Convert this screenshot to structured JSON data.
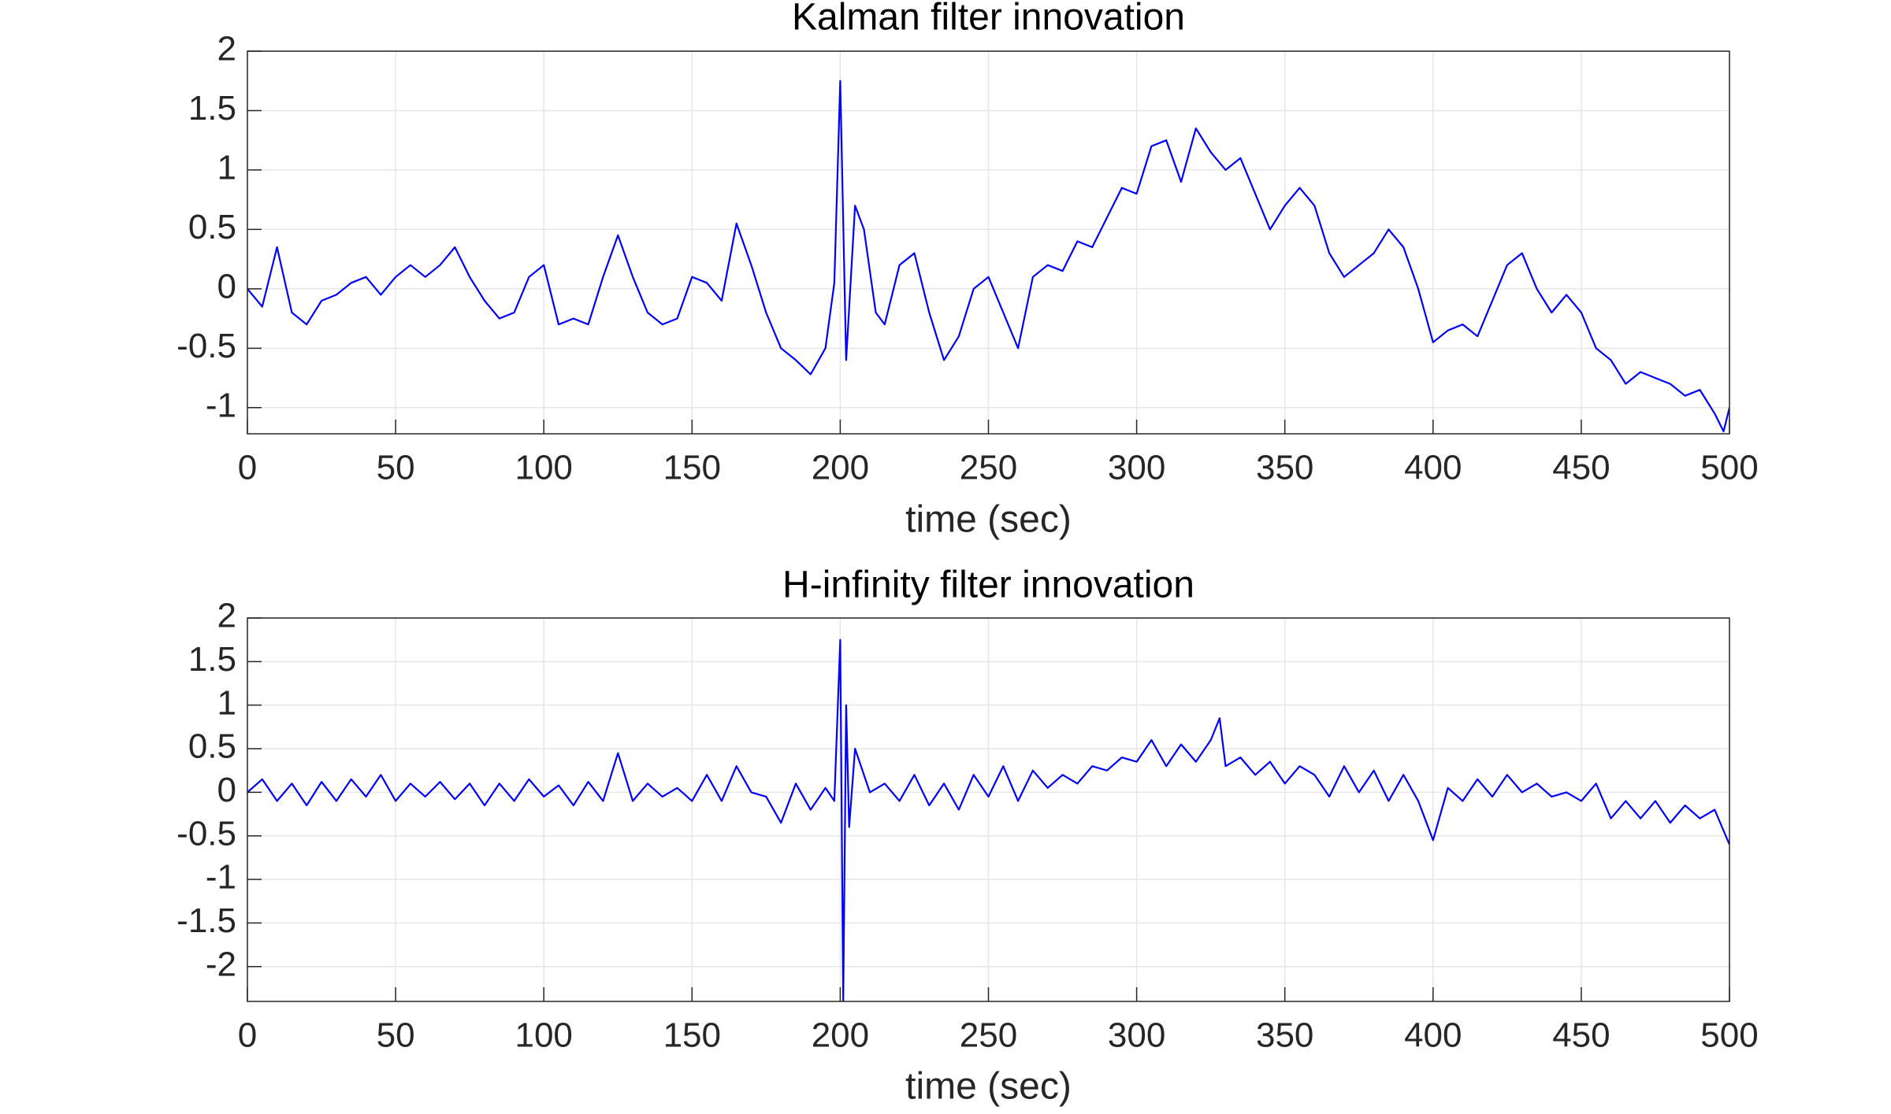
{
  "chart_data": [
    {
      "type": "line",
      "title": "Kalman filter innovation",
      "xlabel": "time (sec)",
      "color": "#0000ff",
      "x": [
        0,
        5,
        10,
        15,
        20,
        25,
        30,
        35,
        40,
        45,
        50,
        55,
        60,
        65,
        70,
        75,
        80,
        85,
        90,
        95,
        100,
        105,
        110,
        115,
        120,
        125,
        130,
        135,
        140,
        145,
        150,
        155,
        160,
        165,
        170,
        175,
        180,
        185,
        190,
        195,
        198,
        200,
        202,
        205,
        208,
        212,
        215,
        220,
        225,
        230,
        235,
        240,
        245,
        250,
        255,
        260,
        265,
        270,
        275,
        280,
        285,
        290,
        295,
        300,
        305,
        310,
        315,
        320,
        325,
        330,
        335,
        340,
        345,
        350,
        355,
        360,
        365,
        370,
        375,
        380,
        385,
        390,
        395,
        400,
        405,
        410,
        415,
        420,
        425,
        430,
        435,
        440,
        445,
        450,
        455,
        460,
        465,
        470,
        475,
        480,
        485,
        490,
        495,
        498,
        500
      ],
      "values": [
        0,
        -0.15,
        0.35,
        -0.2,
        -0.3,
        -0.1,
        -0.05,
        0.05,
        0.1,
        -0.05,
        0.1,
        0.2,
        0.1,
        0.2,
        0.35,
        0.1,
        -0.1,
        -0.25,
        -0.2,
        0.1,
        0.2,
        -0.3,
        -0.25,
        -0.3,
        0.1,
        0.45,
        0.1,
        -0.2,
        -0.3,
        -0.25,
        0.1,
        0.05,
        -0.1,
        0.55,
        0.2,
        -0.2,
        -0.5,
        -0.6,
        -0.72,
        -0.5,
        0.05,
        1.75,
        -0.6,
        0.7,
        0.5,
        -0.2,
        -0.3,
        0.2,
        0.3,
        -0.2,
        -0.6,
        -0.4,
        0,
        0.1,
        -0.2,
        -0.5,
        0.1,
        0.2,
        0.15,
        0.4,
        0.35,
        0.6,
        0.85,
        0.8,
        1.2,
        1.25,
        0.9,
        1.35,
        1.15,
        1,
        1.1,
        0.8,
        0.5,
        0.7,
        0.85,
        0.7,
        0.3,
        0.1,
        0.2,
        0.3,
        0.5,
        0.35,
        0,
        -0.45,
        -0.35,
        -0.3,
        -0.4,
        -0.1,
        0.2,
        0.3,
        0,
        -0.2,
        -0.05,
        -0.2,
        -0.5,
        -0.6,
        -0.8,
        -0.7,
        -0.75,
        -0.8,
        -0.9,
        -0.85,
        -1.05,
        -1.2,
        -1
      ],
      "xlim": [
        0,
        500
      ],
      "xticks": [
        0,
        50,
        100,
        150,
        200,
        250,
        300,
        350,
        400,
        450,
        500
      ],
      "ylim": [
        -1.22,
        2
      ],
      "yticks": [
        2,
        1.5,
        1,
        0.5,
        0,
        -0.5,
        -1
      ],
      "grid": true
    },
    {
      "type": "line",
      "title": "H-infinity filter innovation",
      "xlabel": "time (sec)",
      "color": "#0000ff",
      "x": [
        0,
        5,
        10,
        15,
        20,
        25,
        30,
        35,
        40,
        45,
        50,
        55,
        60,
        65,
        70,
        75,
        80,
        85,
        90,
        95,
        100,
        105,
        110,
        115,
        120,
        125,
        130,
        135,
        140,
        145,
        150,
        155,
        160,
        165,
        170,
        175,
        180,
        185,
        190,
        195,
        198,
        200,
        201,
        202,
        203,
        205,
        210,
        215,
        220,
        225,
        230,
        235,
        240,
        245,
        250,
        255,
        260,
        265,
        270,
        275,
        280,
        285,
        290,
        295,
        300,
        305,
        310,
        315,
        320,
        325,
        328,
        330,
        335,
        340,
        345,
        350,
        355,
        360,
        365,
        370,
        375,
        380,
        385,
        390,
        395,
        400,
        405,
        410,
        415,
        420,
        425,
        430,
        435,
        440,
        445,
        450,
        455,
        460,
        465,
        470,
        475,
        480,
        485,
        490,
        495,
        500
      ],
      "values": [
        0,
        0.15,
        -0.1,
        0.1,
        -0.15,
        0.12,
        -0.1,
        0.15,
        -0.05,
        0.2,
        -0.1,
        0.1,
        -0.05,
        0.12,
        -0.08,
        0.1,
        -0.15,
        0.1,
        -0.1,
        0.15,
        -0.05,
        0.08,
        -0.15,
        0.12,
        -0.1,
        0.45,
        -0.1,
        0.1,
        -0.05,
        0.05,
        -0.1,
        0.2,
        -0.1,
        0.3,
        0,
        -0.05,
        -0.35,
        0.1,
        -0.2,
        0.05,
        -0.1,
        1.75,
        -2.4,
        1,
        -0.4,
        0.5,
        0,
        0.1,
        -0.1,
        0.2,
        -0.15,
        0.1,
        -0.2,
        0.2,
        -0.05,
        0.3,
        -0.1,
        0.25,
        0.05,
        0.2,
        0.1,
        0.3,
        0.25,
        0.4,
        0.35,
        0.6,
        0.3,
        0.55,
        0.35,
        0.6,
        0.85,
        0.3,
        0.4,
        0.2,
        0.35,
        0.1,
        0.3,
        0.2,
        -0.05,
        0.3,
        0,
        0.25,
        -0.1,
        0.2,
        -0.1,
        -0.55,
        0.05,
        -0.1,
        0.15,
        -0.05,
        0.2,
        0,
        0.1,
        -0.05,
        0,
        -0.1,
        0.1,
        -0.3,
        -0.1,
        -0.3,
        -0.1,
        -0.35,
        -0.15,
        -0.3,
        -0.2,
        -0.6
      ],
      "xlim": [
        0,
        500
      ],
      "xticks": [
        0,
        50,
        100,
        150,
        200,
        250,
        300,
        350,
        400,
        450,
        500
      ],
      "ylim": [
        -2.4,
        2
      ],
      "yticks": [
        2,
        1.5,
        1,
        0.5,
        0,
        -0.5,
        -1,
        -1.5,
        -2
      ],
      "grid": true
    }
  ]
}
